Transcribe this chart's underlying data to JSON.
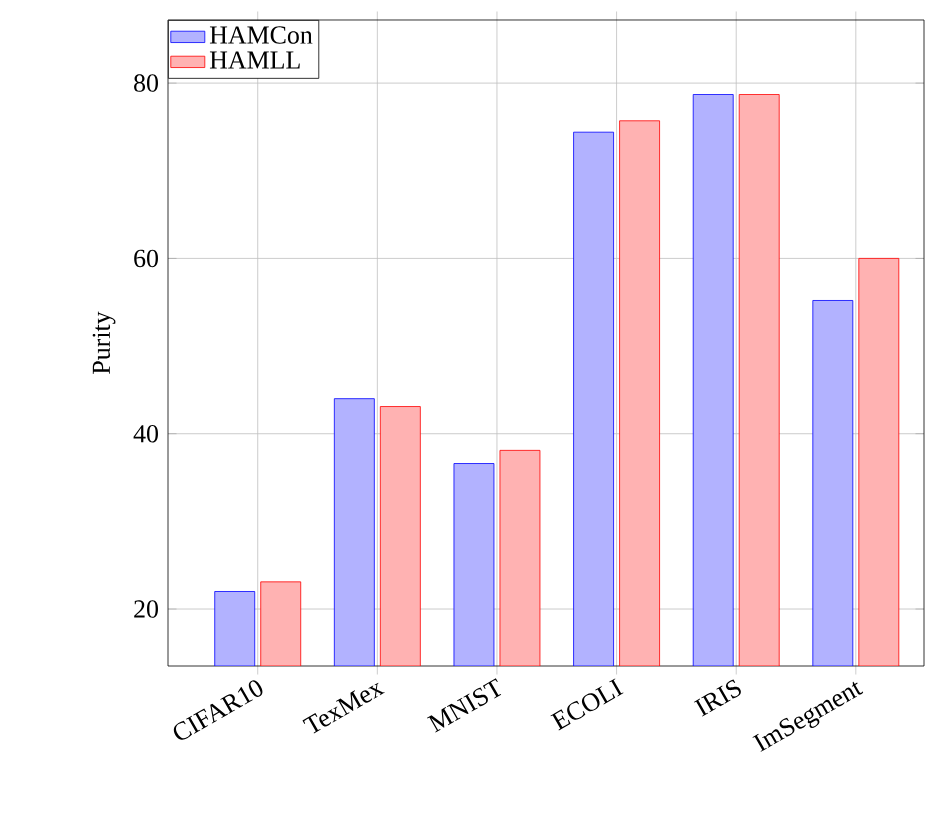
{
  "chart_data": {
    "type": "bar",
    "ylabel": "Purity",
    "categories": [
      "CIFAR10",
      "TexMex",
      "MNIST",
      "ECOLI",
      "IRIS",
      "ImSegment"
    ],
    "series": [
      {
        "name": "HAMCon",
        "color": "#b2b2ff",
        "values": [
          22.0,
          44.0,
          36.6,
          74.4,
          78.7,
          55.2
        ]
      },
      {
        "name": "HAMLL",
        "color": "#ffb2b2",
        "values": [
          23.1,
          43.1,
          38.1,
          75.7,
          78.7,
          60.0
        ]
      }
    ],
    "ylim": [
      13.5,
      87.2
    ],
    "yticks": [
      20,
      40,
      60,
      80
    ],
    "grid": true,
    "legend": "top left"
  }
}
